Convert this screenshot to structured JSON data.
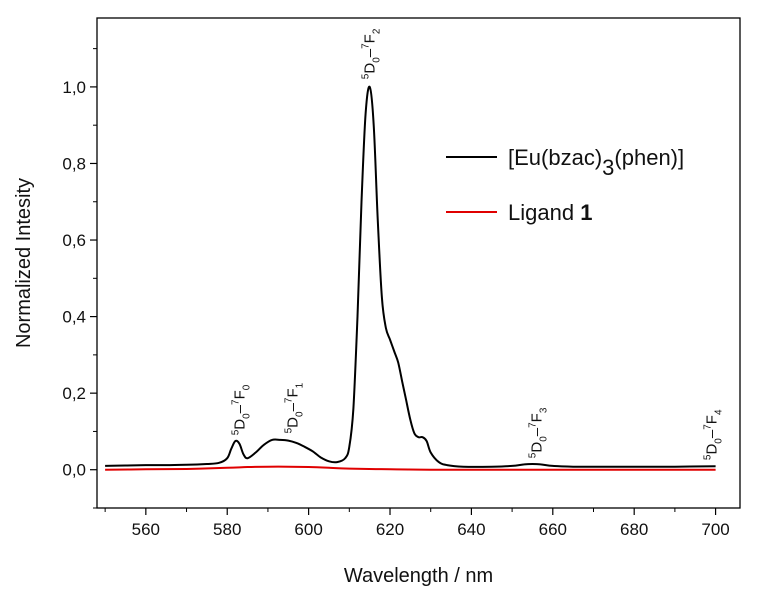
{
  "chart_data": {
    "type": "line",
    "xlabel": "Wavelength / nm",
    "ylabel": "Normalized Intesity",
    "xlim": [
      548,
      706
    ],
    "ylim": [
      -0.1,
      1.18
    ],
    "x_ticks": [
      560,
      580,
      600,
      620,
      640,
      660,
      680,
      700
    ],
    "x_tick_labels": [
      "560",
      "580",
      "600",
      "620",
      "640",
      "660",
      "680",
      "700"
    ],
    "y_ticks": [
      0.0,
      0.2,
      0.4,
      0.6,
      0.8,
      1.0
    ],
    "y_tick_labels": [
      "0,0",
      "0,2",
      "0,4",
      "0,6",
      "0,8",
      "1,0"
    ],
    "grid": false,
    "legend_position": "top-right",
    "legend": [
      {
        "label": "[Eu(bzac)",
        "sub": "3",
        "label_after": "(phen)]",
        "color": "#000000"
      },
      {
        "label": "Ligand ",
        "bold": "1",
        "color": "#e00000"
      }
    ],
    "series": [
      {
        "name": "[Eu(bzac)3(phen)]",
        "color": "#000000",
        "x": [
          550,
          555,
          560,
          565,
          570,
          575,
          578,
          580,
          581,
          582,
          583,
          584,
          585,
          587,
          589,
          591,
          593,
          595,
          597,
          599,
          601,
          603,
          605,
          607,
          609,
          610,
          611,
          612,
          613,
          614,
          615,
          616,
          617,
          618,
          619,
          620,
          621,
          622,
          623,
          624,
          625,
          626,
          627,
          628,
          629,
          630,
          632,
          634,
          638,
          645,
          650,
          653,
          655,
          657,
          660,
          665,
          670,
          680,
          690,
          700
        ],
        "y": [
          0.01,
          0.011,
          0.012,
          0.012,
          0.013,
          0.015,
          0.018,
          0.03,
          0.055,
          0.075,
          0.068,
          0.04,
          0.03,
          0.045,
          0.065,
          0.078,
          0.078,
          0.076,
          0.07,
          0.06,
          0.048,
          0.032,
          0.022,
          0.02,
          0.03,
          0.06,
          0.16,
          0.4,
          0.7,
          0.93,
          1.0,
          0.9,
          0.65,
          0.45,
          0.37,
          0.34,
          0.31,
          0.28,
          0.23,
          0.18,
          0.13,
          0.095,
          0.085,
          0.085,
          0.075,
          0.045,
          0.02,
          0.012,
          0.008,
          0.008,
          0.01,
          0.014,
          0.015,
          0.014,
          0.01,
          0.008,
          0.008,
          0.008,
          0.008,
          0.009
        ]
      },
      {
        "name": "Ligand 1",
        "color": "#e00000",
        "x": [
          550,
          560,
          570,
          580,
          585,
          590,
          595,
          600,
          605,
          610,
          620,
          630,
          640,
          660,
          680,
          700
        ],
        "y": [
          0.0,
          0.001,
          0.002,
          0.005,
          0.007,
          0.008,
          0.008,
          0.007,
          0.005,
          0.003,
          0.001,
          0.0,
          0.0,
          0.0,
          0.0,
          0.0
        ]
      }
    ],
    "annotations": [
      {
        "parts": [
          "5",
          "D",
          "0",
          "–",
          "7",
          "F",
          "0"
        ],
        "x": 583,
        "y": 0.09
      },
      {
        "parts": [
          "5",
          "D",
          "0",
          "–",
          "7",
          "F",
          "1"
        ],
        "x": 596,
        "y": 0.095
      },
      {
        "parts": [
          "5",
          "D",
          "0",
          "–",
          "7",
          "F",
          "2"
        ],
        "x": 615,
        "y": 1.02
      },
      {
        "parts": [
          "5",
          "D",
          "0",
          "–",
          "7",
          "F",
          "3"
        ],
        "x": 656,
        "y": 0.03
      },
      {
        "parts": [
          "5",
          "D",
          "0",
          "–",
          "7",
          "F",
          "4"
        ],
        "x": 699,
        "y": 0.025
      }
    ]
  }
}
